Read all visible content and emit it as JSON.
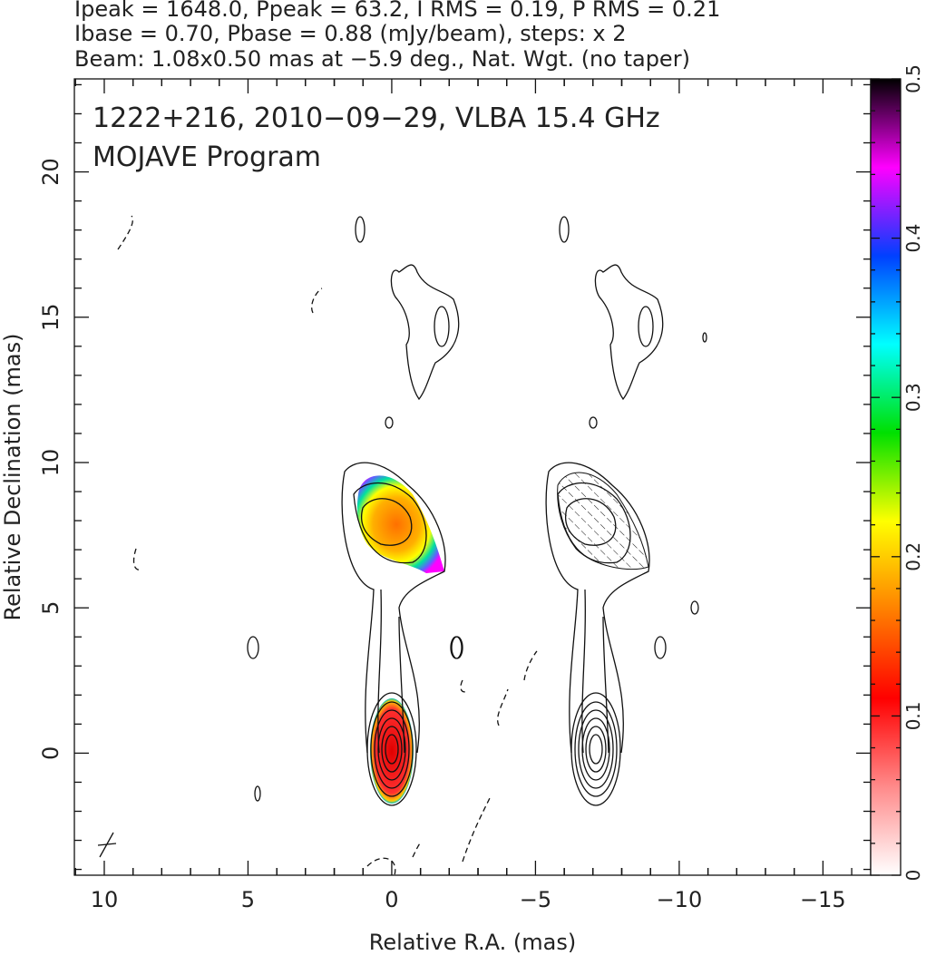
{
  "chart_data": {
    "type": "contour",
    "header": [
      "Ipeak = 1648.0, Ppeak = 63.2, I RMS = 0.19, P RMS = 0.21",
      "Ibase = 0.70, Pbase = 0.88 (mJy/beam), steps: x 2",
      "Beam: 1.08x0.50 mas at −5.9 deg., Nat. Wgt. (no taper)"
    ],
    "annotations": [
      "1222+216, 2010−09−29, VLBA 15.4 GHz",
      "MOJAVE Program"
    ],
    "x_label": "Relative R.A. (mas)",
    "y_label": "Relative Declination (mas)",
    "xlim": [
      11.04,
      -16.66
    ],
    "ylim": [
      -4.2,
      23.2
    ],
    "xticks": [
      10,
      5,
      0,
      {
        "value": -5,
        "label": "−5"
      },
      {
        "value": -10,
        "label": "−10"
      },
      {
        "value": -15,
        "label": "−15"
      }
    ],
    "yticks": [
      0,
      5,
      10,
      15,
      20
    ],
    "colorbar": {
      "lim": [
        0,
        0.5
      ],
      "ticks": [
        0,
        0.1,
        0.2,
        0.3,
        0.4,
        0.5
      ],
      "colors": [
        "#ffffff",
        "#ff8a8a",
        "#ff0000",
        "#ff8000",
        "#ffff00",
        "#00e000",
        "#00ffff",
        "#0040ff",
        "#ff00ff",
        "#000000"
      ]
    }
  }
}
